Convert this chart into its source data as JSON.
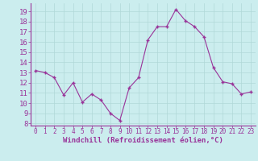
{
  "x": [
    0,
    1,
    2,
    3,
    4,
    5,
    6,
    7,
    8,
    9,
    10,
    11,
    12,
    13,
    14,
    15,
    16,
    17,
    18,
    19,
    20,
    21,
    22,
    23
  ],
  "y": [
    13.2,
    13.0,
    12.5,
    10.8,
    12.0,
    10.1,
    10.9,
    10.3,
    9.0,
    8.3,
    11.5,
    12.5,
    16.2,
    17.5,
    17.5,
    19.2,
    18.1,
    17.5,
    16.5,
    13.5,
    12.1,
    11.9,
    10.9,
    11.1
  ],
  "line_color": "#993399",
  "marker_color": "#993399",
  "bg_color": "#cbedee",
  "grid_color": "#b0d8d8",
  "xlabel": "Windchill (Refroidissement éolien,°C)",
  "ylim": [
    7.8,
    19.8
  ],
  "xlim": [
    -0.5,
    23.5
  ],
  "yticks": [
    8,
    9,
    10,
    11,
    12,
    13,
    14,
    15,
    16,
    17,
    18,
    19
  ],
  "xticks": [
    0,
    1,
    2,
    3,
    4,
    5,
    6,
    7,
    8,
    9,
    10,
    11,
    12,
    13,
    14,
    15,
    16,
    17,
    18,
    19,
    20,
    21,
    22,
    23
  ],
  "xlabel_color": "#993399",
  "tick_color": "#993399",
  "xlabel_fontsize": 6.5,
  "ytick_fontsize": 6.5,
  "xtick_fontsize": 5.5,
  "spine_color": "#993399"
}
